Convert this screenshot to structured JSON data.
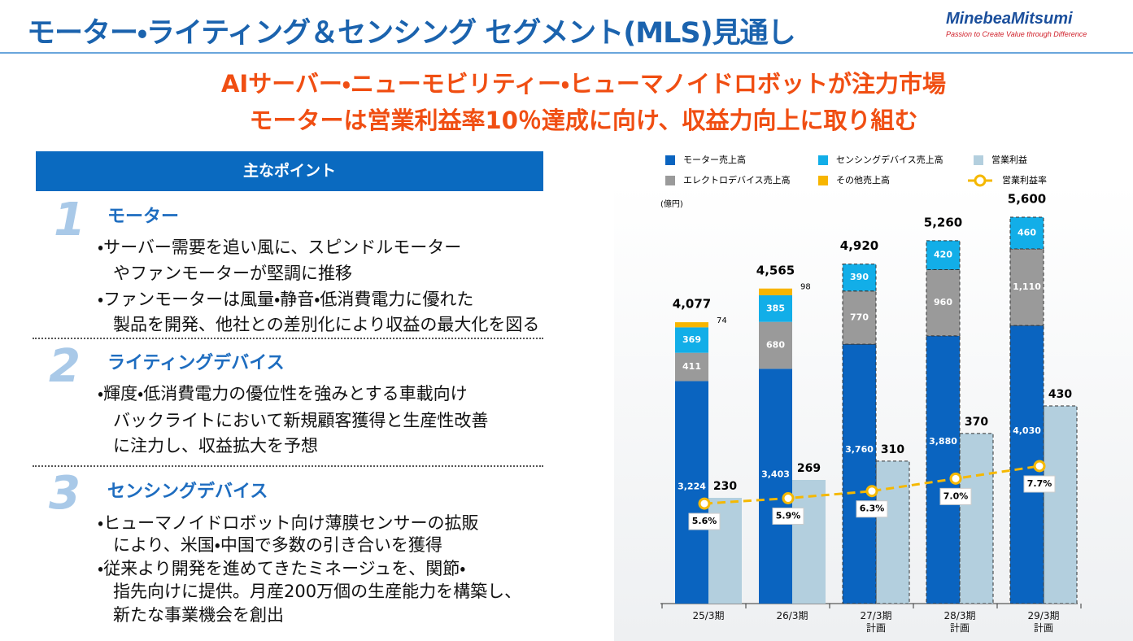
{
  "header": {
    "title": "モーター・ライティング＆センシング セグメント(MLS)見通し",
    "logo": "MinebeaMitsumi",
    "tagline": "Passion to Create Value through Difference"
  },
  "headline": [
    "AIサーバー・ニューモビリティー・ヒューマノイドロボットが注力市場",
    "モーターは営業利益率10％達成に向け、収益力向上に取り組む"
  ],
  "points": {
    "title": "主なポイント",
    "items": [
      {
        "number": "1",
        "heading": "モーター",
        "bullets": [
          [
            "・サーバー需要を追い風に、スピンドルモーター",
            "やファンモーターが堅調に推移"
          ],
          [
            "・ファンモーターは風量・静音・低消費電力に優れた",
            "製品を開発、他社との差別化により収益の最大化を図る"
          ]
        ]
      },
      {
        "number": "2",
        "heading": "ライティングデバイス",
        "bullets": [
          [
            "・輝度・低消費電力の優位性を強みとする車載向け",
            "バックライトにおいて新規顧客獲得と生産性改善",
            "に注力し、収益拡大を予想"
          ]
        ]
      },
      {
        "number": "3",
        "heading": "センシングデバイス",
        "bullets": [
          [
            "・ヒューマノイドロボット向け薄膜センサーの拡販",
            "により、米国・中国で多数の引き合いを獲得"
          ],
          [
            "・従来より開発を進めてきたミネージュを、関節・",
            "指先向けに提供。月産200万個の生産能力を構築し、",
            "新たな事業機会を創出"
          ]
        ]
      }
    ]
  },
  "chart_data": {
    "type": "bar",
    "unit_label": "(億円)",
    "categories": [
      "25/3期",
      "26/3期",
      "27/3期\n計画",
      "28/3期\n計画",
      "29/3期\n計画"
    ],
    "dashed": [
      false,
      false,
      true,
      true,
      true
    ],
    "series": [
      {
        "name": "モーター売上高",
        "color": "#0a64c0",
        "values": [
          3224,
          3403,
          3760,
          3880,
          4030
        ],
        "value_labels": [
          "3,224",
          "3,403",
          "3,760",
          "3,880",
          "4,030"
        ]
      },
      {
        "name": "エレクトロデバイス売上高",
        "color": "#9a9a9a",
        "values": [
          411,
          680,
          770,
          960,
          1110
        ],
        "value_labels": [
          "411",
          "680",
          "770",
          "960",
          "1,110"
        ]
      },
      {
        "name": "センシングデバイス売上高",
        "color": "#12aee8",
        "values": [
          369,
          385,
          390,
          420,
          460
        ]
      },
      {
        "name": "その他売上高",
        "color": "#f7b500",
        "values": [
          74,
          98,
          null,
          null,
          null
        ]
      },
      {
        "name": "営業利益",
        "color": "#b3cfde",
        "axis": "y2",
        "values": [
          230,
          269,
          310,
          370,
          430
        ]
      },
      {
        "name": "営業利益率",
        "color": "#f5b800",
        "axis": "y3",
        "values": [
          5.6,
          5.9,
          6.3,
          7,
          7.7
        ],
        "value_labels": [
          "5.6%",
          "5.9%",
          "6.3%",
          "7.0%",
          "7.7%"
        ]
      }
    ],
    "totals": [
      4077,
      4565,
      4920,
      5260,
      5600
    ],
    "total_labels": [
      "4,077",
      "4,565",
      "4,920",
      "5,260",
      "5,600"
    ]
  }
}
